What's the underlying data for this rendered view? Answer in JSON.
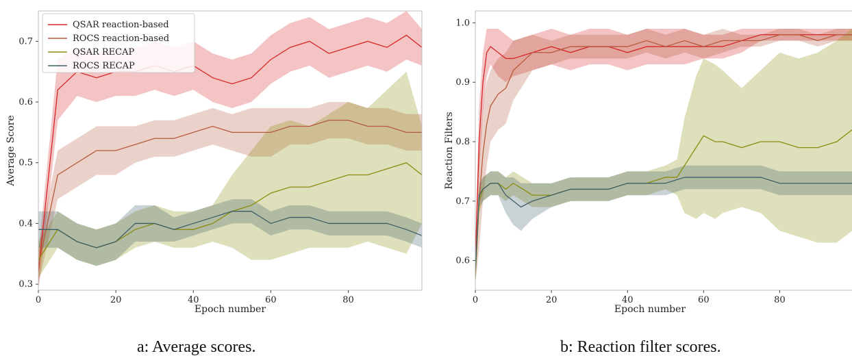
{
  "chart_data": [
    {
      "type": "line",
      "caption": "a: Average scores.",
      "xlabel": "Epoch number",
      "ylabel": "Average Score",
      "xlim": [
        0,
        99
      ],
      "ylim": [
        0.29,
        0.75
      ],
      "xticks": [
        0,
        20,
        40,
        60,
        80
      ],
      "xtick_labels": [
        "0",
        "20",
        "40",
        "60",
        "80"
      ],
      "yticks": [
        0.3,
        0.4,
        0.5,
        0.6,
        0.7
      ],
      "ytick_labels": [
        "0.3",
        "0.4",
        "0.5",
        "0.6",
        "0.7"
      ],
      "grid": false,
      "legend": "top-left",
      "series": [
        {
          "name": "QSAR reaction-based",
          "color": "#d62728",
          "x": [
            0,
            5,
            10,
            15,
            20,
            25,
            30,
            35,
            40,
            45,
            50,
            55,
            60,
            65,
            70,
            75,
            80,
            85,
            90,
            95,
            99
          ],
          "y": [
            0.32,
            0.62,
            0.65,
            0.64,
            0.65,
            0.65,
            0.66,
            0.65,
            0.66,
            0.64,
            0.63,
            0.64,
            0.67,
            0.69,
            0.7,
            0.68,
            0.69,
            0.7,
            0.69,
            0.71,
            0.69
          ],
          "band": [
            0.03,
            0.05,
            0.04,
            0.04,
            0.04,
            0.04,
            0.04,
            0.04,
            0.04,
            0.04,
            0.04,
            0.04,
            0.04,
            0.04,
            0.04,
            0.04,
            0.04,
            0.04,
            0.04,
            0.04,
            0.03
          ]
        },
        {
          "name": "ROCS reaction-based",
          "color": "#b55a3c",
          "x": [
            0,
            5,
            10,
            15,
            20,
            25,
            30,
            35,
            40,
            45,
            50,
            55,
            60,
            65,
            70,
            75,
            80,
            85,
            90,
            95,
            99
          ],
          "y": [
            0.33,
            0.48,
            0.5,
            0.52,
            0.52,
            0.53,
            0.54,
            0.54,
            0.55,
            0.56,
            0.55,
            0.55,
            0.55,
            0.56,
            0.56,
            0.57,
            0.57,
            0.56,
            0.56,
            0.55,
            0.55
          ],
          "band": [
            0.03,
            0.04,
            0.04,
            0.04,
            0.04,
            0.03,
            0.03,
            0.03,
            0.03,
            0.03,
            0.03,
            0.04,
            0.04,
            0.03,
            0.03,
            0.03,
            0.03,
            0.03,
            0.03,
            0.03,
            0.03
          ]
        },
        {
          "name": "QSAR RECAP",
          "color": "#8a8c0c",
          "x": [
            0,
            5,
            10,
            15,
            20,
            25,
            30,
            35,
            40,
            45,
            50,
            55,
            60,
            65,
            70,
            75,
            80,
            85,
            90,
            95,
            99
          ],
          "y": [
            0.34,
            0.39,
            0.37,
            0.36,
            0.37,
            0.39,
            0.4,
            0.39,
            0.39,
            0.4,
            0.42,
            0.43,
            0.45,
            0.46,
            0.46,
            0.47,
            0.48,
            0.48,
            0.49,
            0.5,
            0.48
          ],
          "band": [
            0.03,
            0.03,
            0.03,
            0.03,
            0.03,
            0.03,
            0.03,
            0.03,
            0.03,
            0.03,
            0.06,
            0.09,
            0.11,
            0.11,
            0.1,
            0.11,
            0.12,
            0.11,
            0.13,
            0.15,
            0.08
          ]
        },
        {
          "name": "ROCS RECAP",
          "color": "#3e5e66",
          "x": [
            0,
            5,
            10,
            15,
            20,
            25,
            30,
            35,
            40,
            45,
            50,
            55,
            60,
            65,
            70,
            75,
            80,
            85,
            90,
            95,
            99
          ],
          "y": [
            0.39,
            0.39,
            0.37,
            0.36,
            0.37,
            0.4,
            0.4,
            0.39,
            0.4,
            0.41,
            0.42,
            0.42,
            0.4,
            0.41,
            0.41,
            0.4,
            0.4,
            0.4,
            0.4,
            0.39,
            0.38
          ],
          "band": [
            0.03,
            0.03,
            0.03,
            0.03,
            0.03,
            0.03,
            0.03,
            0.02,
            0.02,
            0.02,
            0.02,
            0.02,
            0.02,
            0.02,
            0.02,
            0.02,
            0.02,
            0.02,
            0.02,
            0.02,
            0.02
          ]
        }
      ]
    },
    {
      "type": "line",
      "caption": "b: Reaction filter scores.",
      "xlabel": "Epoch number",
      "ylabel": "Reaction Filters",
      "xlim": [
        0,
        99
      ],
      "ylim": [
        0.55,
        1.02
      ],
      "xticks": [
        0,
        20,
        40,
        60,
        80
      ],
      "xtick_labels": [
        "0",
        "20",
        "40",
        "60",
        "80"
      ],
      "yticks": [
        0.6,
        0.7,
        0.8,
        0.9,
        1.0
      ],
      "ytick_labels": [
        "0.6",
        "0.7",
        "0.8",
        "0.9",
        "1.0"
      ],
      "grid": false,
      "legend": "none",
      "series": [
        {
          "name": "QSAR reaction-based",
          "color": "#d62728",
          "x": [
            0,
            1,
            2,
            3,
            4,
            6,
            8,
            10,
            15,
            20,
            25,
            30,
            35,
            40,
            45,
            50,
            55,
            60,
            65,
            70,
            75,
            80,
            85,
            90,
            95,
            99
          ],
          "y": [
            0.6,
            0.8,
            0.9,
            0.95,
            0.96,
            0.95,
            0.94,
            0.94,
            0.95,
            0.96,
            0.95,
            0.96,
            0.96,
            0.95,
            0.96,
            0.96,
            0.96,
            0.96,
            0.96,
            0.97,
            0.98,
            0.98,
            0.98,
            0.98,
            0.98,
            0.98
          ],
          "band": [
            0.02,
            0.06,
            0.05,
            0.04,
            0.03,
            0.04,
            0.04,
            0.03,
            0.03,
            0.03,
            0.03,
            0.03,
            0.03,
            0.03,
            0.03,
            0.03,
            0.03,
            0.02,
            0.02,
            0.02,
            0.01,
            0.01,
            0.01,
            0.01,
            0.01,
            0.01
          ]
        },
        {
          "name": "ROCS reaction-based",
          "color": "#b55a3c",
          "x": [
            0,
            1,
            2,
            3,
            4,
            6,
            8,
            10,
            15,
            20,
            25,
            30,
            35,
            40,
            45,
            50,
            55,
            60,
            65,
            70,
            75,
            80,
            85,
            90,
            95,
            99
          ],
          "y": [
            0.58,
            0.7,
            0.78,
            0.83,
            0.86,
            0.88,
            0.89,
            0.92,
            0.95,
            0.95,
            0.96,
            0.96,
            0.96,
            0.96,
            0.97,
            0.96,
            0.97,
            0.96,
            0.97,
            0.97,
            0.97,
            0.98,
            0.98,
            0.97,
            0.98,
            0.98
          ],
          "band": [
            0.02,
            0.08,
            0.08,
            0.07,
            0.06,
            0.06,
            0.06,
            0.05,
            0.03,
            0.02,
            0.02,
            0.02,
            0.02,
            0.02,
            0.02,
            0.02,
            0.02,
            0.02,
            0.02,
            0.01,
            0.01,
            0.01,
            0.01,
            0.01,
            0.01,
            0.01
          ]
        },
        {
          "name": "QSAR RECAP",
          "color": "#8a8c0c",
          "x": [
            0,
            1,
            2,
            4,
            6,
            8,
            10,
            15,
            20,
            25,
            30,
            35,
            40,
            45,
            50,
            53,
            55,
            58,
            60,
            63,
            65,
            70,
            75,
            80,
            85,
            90,
            95,
            99
          ],
          "y": [
            0.57,
            0.7,
            0.72,
            0.73,
            0.73,
            0.72,
            0.73,
            0.71,
            0.71,
            0.72,
            0.72,
            0.72,
            0.73,
            0.73,
            0.74,
            0.74,
            0.76,
            0.79,
            0.81,
            0.8,
            0.8,
            0.79,
            0.8,
            0.8,
            0.79,
            0.79,
            0.8,
            0.82
          ],
          "band": [
            0.01,
            0.02,
            0.02,
            0.02,
            0.02,
            0.02,
            0.02,
            0.02,
            0.02,
            0.02,
            0.02,
            0.02,
            0.02,
            0.02,
            0.02,
            0.03,
            0.08,
            0.12,
            0.13,
            0.13,
            0.12,
            0.1,
            0.12,
            0.15,
            0.15,
            0.16,
            0.17,
            0.17
          ]
        },
        {
          "name": "ROCS RECAP",
          "color": "#3e5e66",
          "x": [
            0,
            1,
            2,
            4,
            6,
            8,
            10,
            12,
            15,
            20,
            25,
            30,
            35,
            40,
            45,
            50,
            55,
            60,
            65,
            70,
            75,
            80,
            85,
            90,
            95,
            99
          ],
          "y": [
            0.58,
            0.71,
            0.72,
            0.73,
            0.73,
            0.71,
            0.7,
            0.69,
            0.7,
            0.71,
            0.72,
            0.72,
            0.72,
            0.73,
            0.73,
            0.73,
            0.74,
            0.74,
            0.74,
            0.74,
            0.74,
            0.73,
            0.73,
            0.73,
            0.73,
            0.73
          ],
          "band": [
            0.01,
            0.02,
            0.02,
            0.02,
            0.02,
            0.03,
            0.04,
            0.04,
            0.03,
            0.02,
            0.02,
            0.02,
            0.02,
            0.02,
            0.02,
            0.02,
            0.02,
            0.02,
            0.02,
            0.02,
            0.02,
            0.02,
            0.02,
            0.02,
            0.02,
            0.02
          ]
        }
      ]
    }
  ]
}
